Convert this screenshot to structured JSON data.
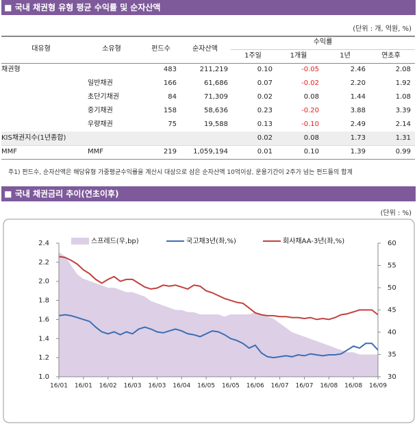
{
  "sections": [
    {
      "title": "국내 채권형 유형 평균 수익률 및 순자산액",
      "unit": "(단위 : 개, 억원, %)"
    },
    {
      "title": "국내 채권금리 추이(연초이후)",
      "unit": "(단위 : %)"
    }
  ],
  "table": {
    "headers": [
      "대유형",
      "소유형",
      "펀드수",
      "순자산액"
    ],
    "group_header": "수익률",
    "sub_headers": [
      "1주일",
      "1개월",
      "1년",
      "연초후"
    ],
    "rows": [
      [
        "채권형",
        null,
        "483",
        "211,219",
        "0.10",
        "-0.05",
        "2.46",
        "2.08"
      ],
      [
        null,
        "일반채권",
        "166",
        "61,686",
        "0.07",
        "-0.02",
        "2.20",
        "1.92"
      ],
      [
        null,
        "초단기채권",
        "84",
        "71,309",
        "0.02",
        "0.08",
        "1.44",
        "1.08"
      ],
      [
        null,
        "중기채권",
        "158",
        "58,636",
        "0.23",
        "-0.20",
        "3.88",
        "3.39"
      ],
      [
        null,
        "우량채권",
        "75",
        "19,588",
        "0.13",
        "-0.10",
        "2.49",
        "2.14"
      ],
      [
        "KIS채권지수(1년종합)",
        null,
        null,
        null,
        "0.02",
        "0.08",
        "1.73",
        "1.31"
      ],
      [
        "MMF",
        "MMF",
        "219",
        "1,059,194",
        "0.01",
        "0.10",
        "1.39",
        "0.99"
      ]
    ]
  },
  "footnote": "주1) 펀드수, 순자산액은 해당유형 가중평균수익률을 계산시 대상으로 삼은 순자산액 10억이상, 운용기간이 2주가 넘는 펀드들의 합계",
  "chart_data": {
    "type": "line",
    "categories": [
      "16/01",
      null,
      null,
      null,
      "16/01",
      null,
      null,
      null,
      "16/02",
      null,
      null,
      null,
      "16/03",
      null,
      null,
      null,
      "16/03",
      null,
      null,
      null,
      "16/04",
      null,
      null,
      null,
      "16/05",
      null,
      null,
      null,
      "16/05",
      null,
      null,
      null,
      "16/06",
      null,
      null,
      null,
      "16/07",
      null,
      null,
      null,
      "16/07",
      null,
      null,
      null,
      "16/08",
      null,
      null,
      null,
      "16/08",
      null,
      null,
      null,
      "16/09"
    ],
    "series": [
      {
        "name": "스프레드(우,bp)",
        "type": "area",
        "axis": "y2",
        "color": "#dccfe6",
        "values": [
          58,
          57,
          55,
          53,
          52,
          51.5,
          51,
          50.5,
          50,
          50,
          49.5,
          49,
          49,
          48.5,
          48,
          47,
          46.5,
          46,
          45.5,
          45,
          45,
          44.5,
          44.5,
          44,
          44,
          44,
          44,
          43.5,
          44,
          44,
          44,
          44,
          44.5,
          44,
          43.5,
          43,
          42,
          41,
          40,
          39.5,
          39,
          38.5,
          38,
          37.5,
          37,
          36.5,
          36,
          35.5,
          35.5,
          35,
          35,
          35,
          35
        ]
      },
      {
        "name": "국고채3년(좌,%)",
        "type": "line",
        "color": "#3b6db3",
        "values": [
          1.64,
          1.65,
          1.64,
          1.62,
          1.6,
          1.58,
          1.52,
          1.47,
          1.45,
          1.47,
          1.44,
          1.47,
          1.45,
          1.5,
          1.52,
          1.5,
          1.47,
          1.46,
          1.48,
          1.5,
          1.48,
          1.45,
          1.44,
          1.42,
          1.45,
          1.48,
          1.47,
          1.44,
          1.4,
          1.38,
          1.35,
          1.3,
          1.33,
          1.25,
          1.21,
          1.2,
          1.21,
          1.22,
          1.21,
          1.23,
          1.22,
          1.24,
          1.23,
          1.22,
          1.23,
          1.23,
          1.24,
          1.28,
          1.32,
          1.3,
          1.35,
          1.35,
          1.28
        ]
      },
      {
        "name": "회사채AA-3년(좌,%)",
        "type": "line",
        "color": "#c0403c",
        "values": [
          2.26,
          2.25,
          2.22,
          2.18,
          2.12,
          2.08,
          2.02,
          1.98,
          2.02,
          2.05,
          2.0,
          2.02,
          2.02,
          1.98,
          1.94,
          1.92,
          1.93,
          1.96,
          1.95,
          1.96,
          1.94,
          1.92,
          1.96,
          1.95,
          1.9,
          1.88,
          1.85,
          1.82,
          1.8,
          1.78,
          1.77,
          1.72,
          1.67,
          1.65,
          1.64,
          1.64,
          1.63,
          1.63,
          1.62,
          1.62,
          1.61,
          1.62,
          1.6,
          1.61,
          1.6,
          1.62,
          1.65,
          1.66,
          1.68,
          1.7,
          1.7,
          1.7,
          1.65
        ]
      }
    ],
    "ylim": [
      1.0,
      2.4
    ],
    "yticks": [
      {
        "value": 1.0,
        "label": "1.0"
      },
      1.2,
      1.4,
      1.6,
      1.8,
      {
        "value": 2.0,
        "label": "2.0"
      },
      2.2,
      2.4
    ],
    "y2lim": [
      30,
      60
    ],
    "y2ticks": [
      30,
      35,
      40,
      45,
      50,
      55,
      60
    ]
  }
}
